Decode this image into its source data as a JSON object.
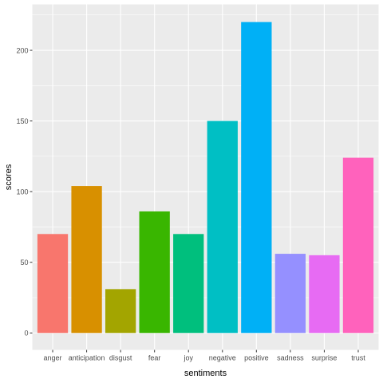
{
  "chart_data": {
    "type": "bar",
    "title": "",
    "xlabel": "sentiments",
    "ylabel": "scores",
    "categories": [
      "anger",
      "anticipation",
      "disgust",
      "fear",
      "joy",
      "negative",
      "positive",
      "sadness",
      "surprise",
      "trust"
    ],
    "values": [
      70,
      104,
      31,
      86,
      70,
      150,
      220,
      56,
      55,
      124
    ],
    "colors": [
      "#F8766D",
      "#D89000",
      "#A3A500",
      "#39B600",
      "#00BF7D",
      "#00BFC4",
      "#00B0F6",
      "#9590FF",
      "#E76BF3",
      "#FF62BC"
    ],
    "ylim": [
      -12,
      232.5
    ],
    "yticks": [
      0,
      50,
      100,
      150,
      200
    ],
    "grid": true,
    "legend": "none",
    "panel_background": "#EBEBEB",
    "grid_color": "#FFFFFF",
    "text_color": "#4D4D4D",
    "axis_title_color": "#000000"
  }
}
